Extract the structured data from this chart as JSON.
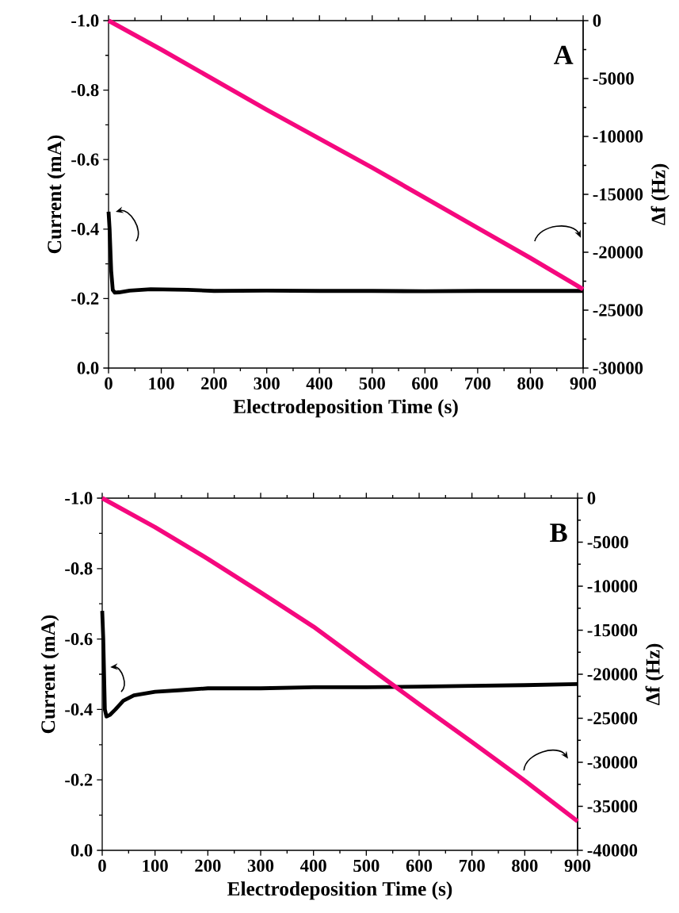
{
  "chart_data": [
    {
      "type": "line",
      "annotations": [
        "A"
      ],
      "xlabel": "Electrodeposition Time (s)",
      "ylabel": "Current (mA)",
      "y2label": "Δf (Hz)",
      "xlim": [
        0,
        900
      ],
      "xticks": [
        0,
        100,
        200,
        300,
        400,
        500,
        600,
        700,
        800,
        900
      ],
      "ylim": [
        0.0,
        -1.0
      ],
      "yticks": [
        {
          "value": 0.0,
          "label": "0.0"
        },
        {
          "value": -0.2,
          "label": "-0.2"
        },
        {
          "value": -0.4,
          "label": "-0.4"
        },
        {
          "value": -0.6,
          "label": "-0.6"
        },
        {
          "value": -0.8,
          "label": "-0.8"
        },
        {
          "value": -1.0,
          "label": "-1.0"
        }
      ],
      "y2lim": [
        -30000,
        0
      ],
      "y2ticks": [
        -30000,
        -25000,
        -20000,
        -15000,
        -10000,
        -5000,
        0
      ],
      "series": [
        {
          "color": "#000000",
          "x": [
            0,
            2,
            5,
            8,
            12,
            20,
            40,
            80,
            150,
            200,
            300,
            400,
            500,
            600,
            700,
            800,
            900
          ],
          "values": [
            -0.45,
            -0.4,
            -0.28,
            -0.225,
            -0.217,
            -0.218,
            -0.223,
            -0.227,
            -0.225,
            -0.222,
            -0.223,
            -0.222,
            -0.222,
            -0.221,
            -0.222,
            -0.222,
            -0.222
          ]
        },
        {
          "color": "#f5087e",
          "axis": "y2",
          "x": [
            0,
            100,
            200,
            300,
            400,
            500,
            600,
            700,
            800,
            900
          ],
          "values": [
            0,
            -2500,
            -5100,
            -7700,
            -10200,
            -12700,
            -15300,
            -17900,
            -20500,
            -23200
          ]
        }
      ]
    },
    {
      "type": "line",
      "annotations": [
        "B"
      ],
      "xlabel": "Electrodeposition Time (s)",
      "ylabel": "Current (mA)",
      "y2label": "Δf (Hz)",
      "xlim": [
        0,
        900
      ],
      "xticks": [
        0,
        100,
        200,
        300,
        400,
        500,
        600,
        700,
        800,
        900
      ],
      "ylim": [
        0.0,
        -1.0
      ],
      "yticks": [
        {
          "value": 0.0,
          "label": "0.0"
        },
        {
          "value": -0.2,
          "label": "-0.2"
        },
        {
          "value": -0.4,
          "label": "-0.4"
        },
        {
          "value": -0.6,
          "label": "-0.6"
        },
        {
          "value": -0.8,
          "label": "-0.8"
        },
        {
          "value": -1.0,
          "label": "-1.0"
        }
      ],
      "y2lim": [
        -40000,
        0
      ],
      "y2ticks": [
        -40000,
        -35000,
        -30000,
        -25000,
        -20000,
        -15000,
        -10000,
        -5000,
        0
      ],
      "series": [
        {
          "color": "#000000",
          "x": [
            0,
            2,
            5,
            8,
            15,
            25,
            40,
            60,
            100,
            150,
            200,
            300,
            400,
            500,
            600,
            700,
            800,
            900
          ],
          "values": [
            -0.68,
            -0.6,
            -0.4,
            -0.38,
            -0.385,
            -0.4,
            -0.425,
            -0.44,
            -0.45,
            -0.455,
            -0.46,
            -0.46,
            -0.463,
            -0.463,
            -0.465,
            -0.467,
            -0.469,
            -0.472
          ]
        },
        {
          "color": "#f5087e",
          "axis": "y2",
          "x": [
            0,
            100,
            200,
            300,
            400,
            500,
            600,
            700,
            800,
            900
          ],
          "values": [
            0,
            -3300,
            -6900,
            -10700,
            -14600,
            -19000,
            -23400,
            -27700,
            -32100,
            -36700
          ]
        }
      ]
    }
  ]
}
